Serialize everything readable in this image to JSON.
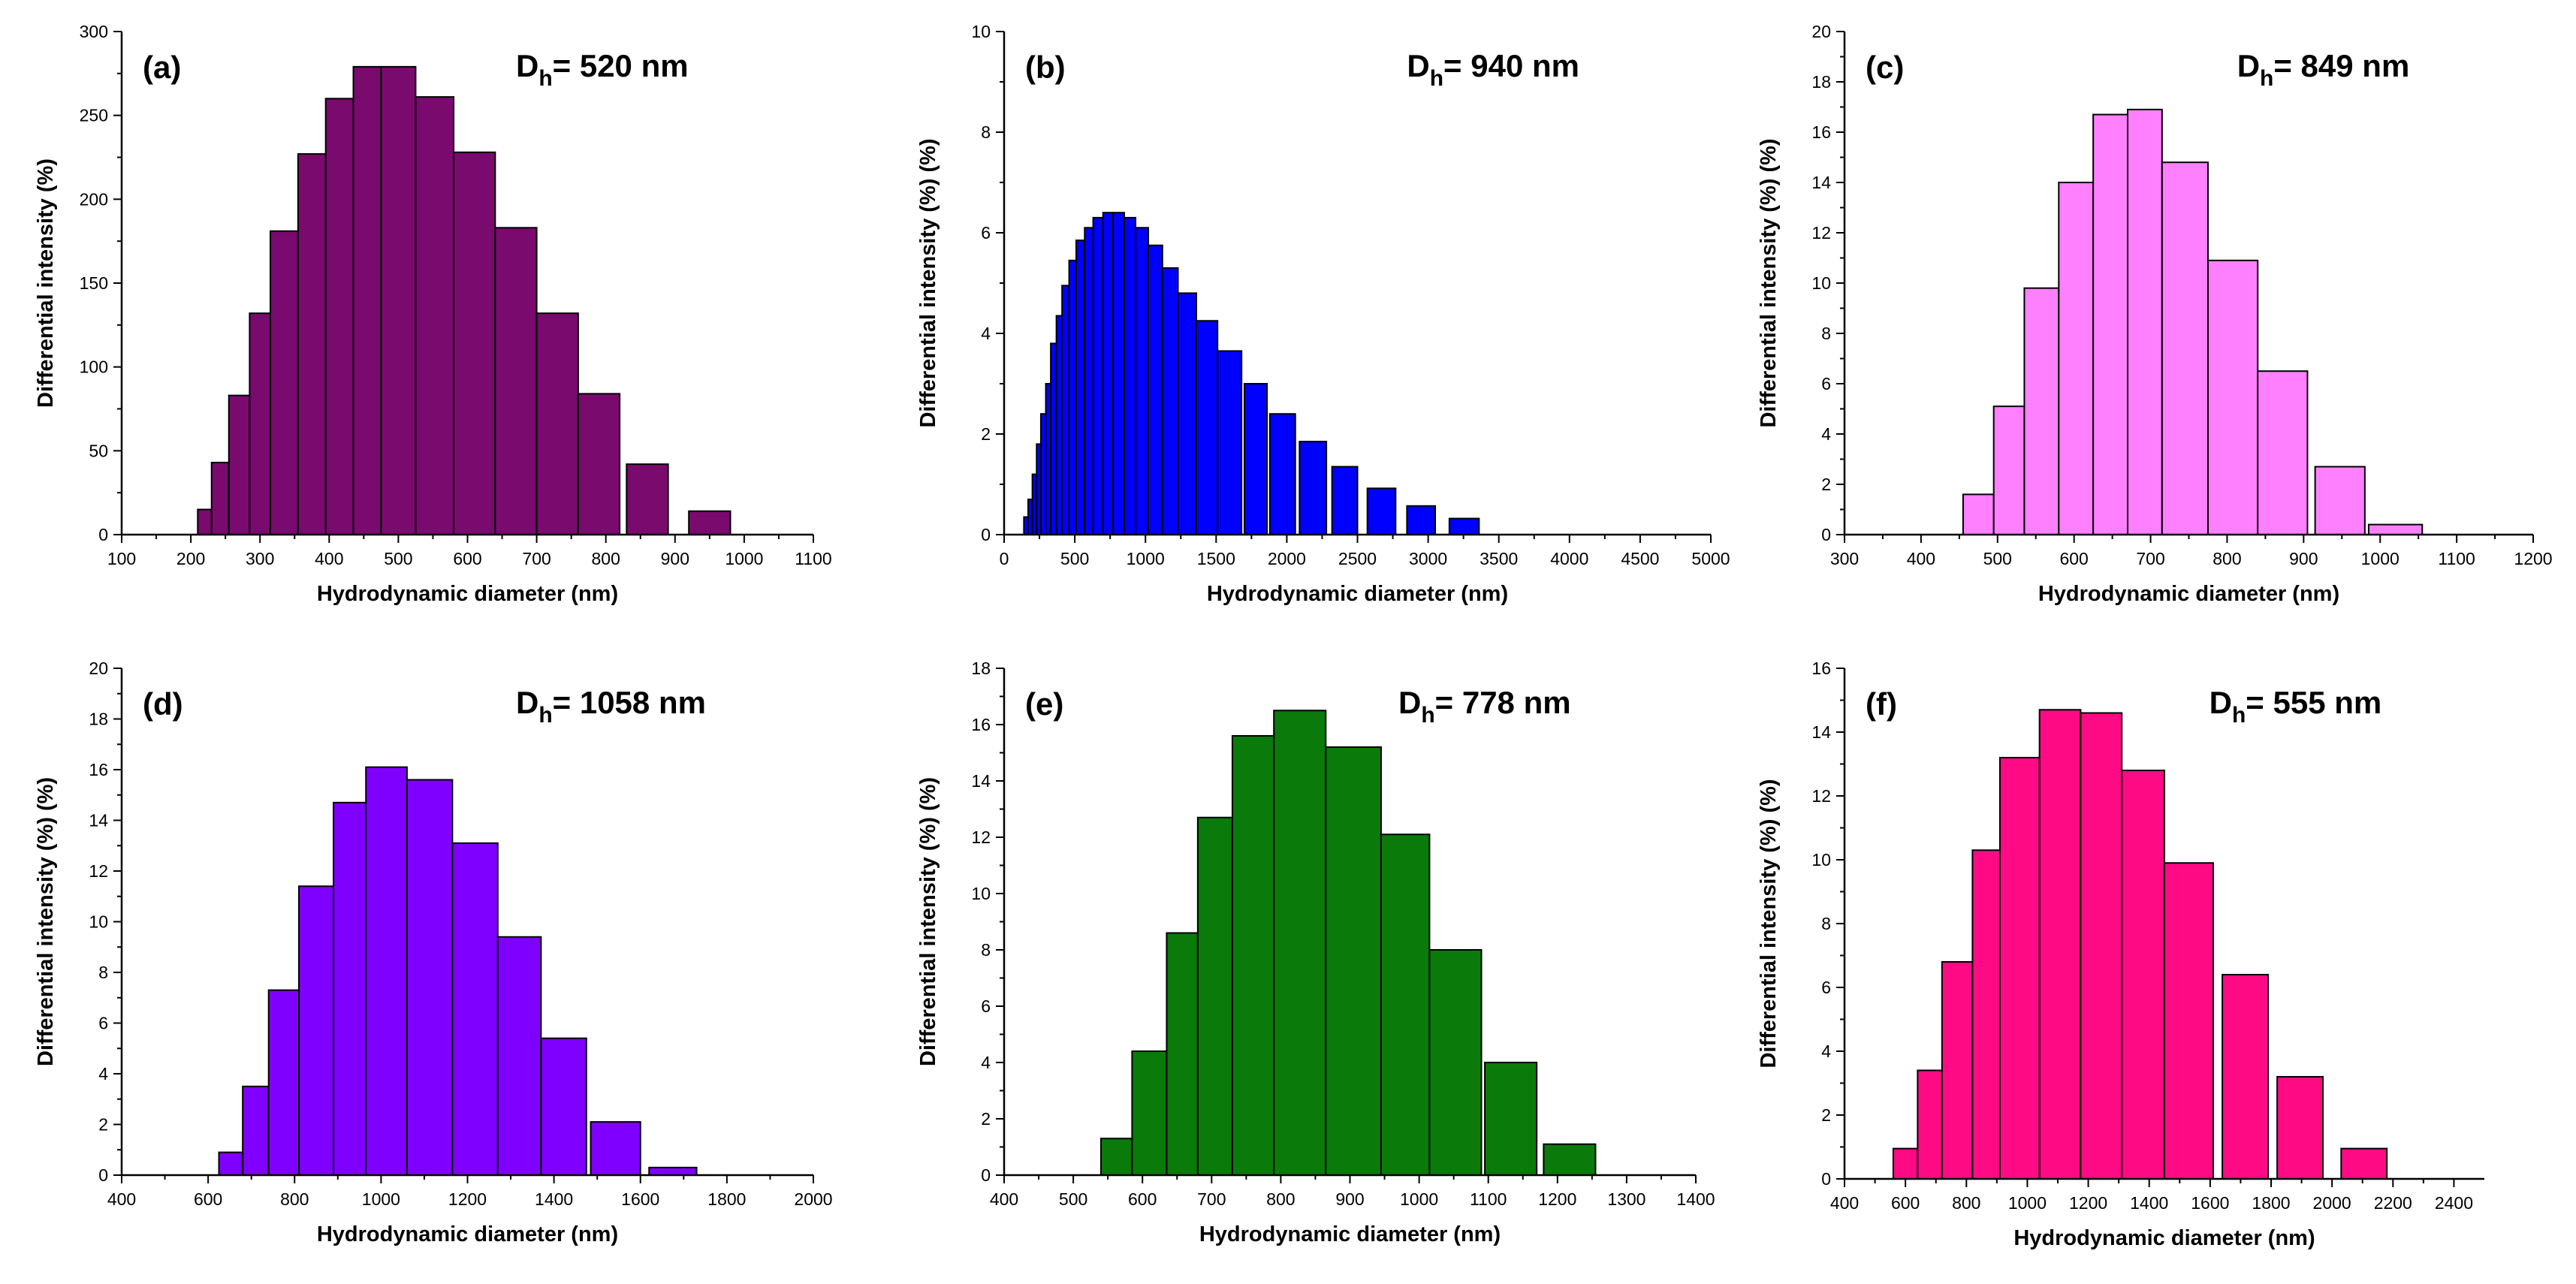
{
  "chart_data": [
    {
      "type": "bar",
      "panel_label": "(a)",
      "annotation": {
        "main": "D",
        "sub": "h",
        "rest": "= 520 nm"
      },
      "xlabel": "Hydrodynamic diameter (nm)",
      "ylabel": "Differential intensity (%)",
      "xlim": [
        100,
        1100
      ],
      "ylim": [
        0,
        300
      ],
      "xticks": [
        100,
        200,
        300,
        400,
        500,
        600,
        700,
        800,
        900,
        1000,
        1100
      ],
      "yticks": [
        0,
        50,
        100,
        150,
        200,
        250,
        300
      ],
      "color": "#7A0A6E",
      "bars": [
        {
          "x0": 210,
          "x1": 230,
          "y": 15
        },
        {
          "x0": 230,
          "x1": 255,
          "y": 43
        },
        {
          "x0": 255,
          "x1": 285,
          "y": 83
        },
        {
          "x0": 285,
          "x1": 315,
          "y": 132
        },
        {
          "x0": 315,
          "x1": 355,
          "y": 181
        },
        {
          "x0": 355,
          "x1": 395,
          "y": 227
        },
        {
          "x0": 395,
          "x1": 435,
          "y": 260
        },
        {
          "x0": 435,
          "x1": 475,
          "y": 279
        },
        {
          "x0": 475,
          "x1": 525,
          "y": 279
        },
        {
          "x0": 525,
          "x1": 580,
          "y": 261
        },
        {
          "x0": 580,
          "x1": 640,
          "y": 228
        },
        {
          "x0": 640,
          "x1": 700,
          "y": 183
        },
        {
          "x0": 700,
          "x1": 760,
          "y": 132
        },
        {
          "x0": 760,
          "x1": 820,
          "y": 84
        },
        {
          "x0": 830,
          "x1": 890,
          "y": 42
        },
        {
          "x0": 920,
          "x1": 980,
          "y": 14
        }
      ]
    },
    {
      "type": "bar",
      "panel_label": "(b)",
      "annotation": {
        "main": "D",
        "sub": "h",
        "rest": "= 940 nm"
      },
      "xlabel": "Hydrodynamic diameter (nm)",
      "ylabel": "Differential intensity (%) (%)",
      "xlim": [
        0,
        5000
      ],
      "ylim": [
        0,
        10
      ],
      "xticks": [
        0,
        500,
        1000,
        1500,
        2000,
        2500,
        3000,
        3500,
        4000,
        4500,
        5000
      ],
      "yticks": [
        0,
        2,
        4,
        6,
        8,
        10
      ],
      "color": "#0000FF",
      "bars": [
        {
          "x0": 140,
          "x1": 170,
          "y": 0.35
        },
        {
          "x0": 170,
          "x1": 200,
          "y": 0.7
        },
        {
          "x0": 200,
          "x1": 230,
          "y": 1.2
        },
        {
          "x0": 230,
          "x1": 260,
          "y": 1.8
        },
        {
          "x0": 260,
          "x1": 295,
          "y": 2.4
        },
        {
          "x0": 295,
          "x1": 330,
          "y": 3.0
        },
        {
          "x0": 330,
          "x1": 370,
          "y": 3.8
        },
        {
          "x0": 370,
          "x1": 410,
          "y": 4.35
        },
        {
          "x0": 410,
          "x1": 460,
          "y": 4.95
        },
        {
          "x0": 460,
          "x1": 510,
          "y": 5.45
        },
        {
          "x0": 510,
          "x1": 570,
          "y": 5.85
        },
        {
          "x0": 570,
          "x1": 630,
          "y": 6.1
        },
        {
          "x0": 630,
          "x1": 700,
          "y": 6.3
        },
        {
          "x0": 700,
          "x1": 770,
          "y": 6.4
        },
        {
          "x0": 770,
          "x1": 850,
          "y": 6.4
        },
        {
          "x0": 850,
          "x1": 930,
          "y": 6.3
        },
        {
          "x0": 930,
          "x1": 1020,
          "y": 6.1
        },
        {
          "x0": 1020,
          "x1": 1120,
          "y": 5.75
        },
        {
          "x0": 1120,
          "x1": 1230,
          "y": 5.3
        },
        {
          "x0": 1230,
          "x1": 1360,
          "y": 4.8
        },
        {
          "x0": 1360,
          "x1": 1510,
          "y": 4.25
        },
        {
          "x0": 1510,
          "x1": 1680,
          "y": 3.65
        },
        {
          "x0": 1700,
          "x1": 1860,
          "y": 3.0
        },
        {
          "x0": 1880,
          "x1": 2060,
          "y": 2.4
        },
        {
          "x0": 2090,
          "x1": 2280,
          "y": 1.85
        },
        {
          "x0": 2320,
          "x1": 2500,
          "y": 1.35
        },
        {
          "x0": 2570,
          "x1": 2770,
          "y": 0.92
        },
        {
          "x0": 2850,
          "x1": 3050,
          "y": 0.57
        },
        {
          "x0": 3150,
          "x1": 3360,
          "y": 0.32
        }
      ]
    },
    {
      "type": "bar",
      "panel_label": "(c)",
      "annotation": {
        "main": "D",
        "sub": "h",
        "rest": "= 849 nm"
      },
      "xlabel": "Hydrodynamic diameter (nm)",
      "ylabel": "Differential intensity (%) (%)",
      "xlim": [
        300,
        1200
      ],
      "ylim": [
        0,
        20
      ],
      "xticks": [
        300,
        400,
        500,
        600,
        700,
        800,
        900,
        1000,
        1100,
        1200
      ],
      "yticks": [
        0,
        2,
        4,
        6,
        8,
        10,
        12,
        14,
        16,
        18,
        20
      ],
      "color": "#FF80FF",
      "bars": [
        {
          "x0": 455,
          "x1": 495,
          "y": 1.6
        },
        {
          "x0": 495,
          "x1": 535,
          "y": 5.1
        },
        {
          "x0": 535,
          "x1": 580,
          "y": 9.8
        },
        {
          "x0": 580,
          "x1": 625,
          "y": 14.0
        },
        {
          "x0": 625,
          "x1": 670,
          "y": 16.7
        },
        {
          "x0": 670,
          "x1": 715,
          "y": 16.9
        },
        {
          "x0": 715,
          "x1": 775,
          "y": 14.8
        },
        {
          "x0": 775,
          "x1": 840,
          "y": 10.9
        },
        {
          "x0": 840,
          "x1": 905,
          "y": 6.5
        },
        {
          "x0": 915,
          "x1": 980,
          "y": 2.7
        },
        {
          "x0": 985,
          "x1": 1055,
          "y": 0.4
        }
      ]
    },
    {
      "type": "bar",
      "panel_label": "(d)",
      "annotation": {
        "main": "D",
        "sub": "h",
        "rest": "= 1058 nm"
      },
      "xlabel": "Hydrodynamic diameter (nm)",
      "ylabel": "Differential intensity (%) (%)",
      "xlim": [
        400,
        2000
      ],
      "ylim": [
        0,
        20
      ],
      "xticks": [
        400,
        600,
        800,
        1000,
        1200,
        1400,
        1600,
        1800,
        2000
      ],
      "yticks": [
        0,
        2,
        4,
        6,
        8,
        10,
        12,
        14,
        16,
        18,
        20
      ],
      "color": "#8000FF",
      "bars": [
        {
          "x0": 625,
          "x1": 680,
          "y": 0.9
        },
        {
          "x0": 680,
          "x1": 740,
          "y": 3.5
        },
        {
          "x0": 740,
          "x1": 810,
          "y": 7.3
        },
        {
          "x0": 810,
          "x1": 890,
          "y": 11.4
        },
        {
          "x0": 890,
          "x1": 965,
          "y": 14.7
        },
        {
          "x0": 965,
          "x1": 1060,
          "y": 16.1
        },
        {
          "x0": 1060,
          "x1": 1165,
          "y": 15.6
        },
        {
          "x0": 1165,
          "x1": 1270,
          "y": 13.1
        },
        {
          "x0": 1270,
          "x1": 1370,
          "y": 9.4
        },
        {
          "x0": 1370,
          "x1": 1475,
          "y": 5.4
        },
        {
          "x0": 1485,
          "x1": 1600,
          "y": 2.1
        },
        {
          "x0": 1620,
          "x1": 1730,
          "y": 0.3
        }
      ]
    },
    {
      "type": "bar",
      "panel_label": "(e)",
      "annotation": {
        "main": "D",
        "sub": "h",
        "rest": "= 778 nm"
      },
      "xlabel": "Hydrodynamic diameter (nm)",
      "ylabel": "Differential intensity (%) (%)",
      "xlim": [
        400,
        1400
      ],
      "ylim": [
        0,
        18
      ],
      "xticks": [
        400,
        500,
        600,
        700,
        800,
        900,
        1000,
        1100,
        1200,
        1300,
        1400
      ],
      "yticks": [
        0,
        2,
        4,
        6,
        8,
        10,
        12,
        14,
        16,
        18
      ],
      "color": "#0A7A0A",
      "bars": [
        {
          "x0": 540,
          "x1": 585,
          "y": 1.3
        },
        {
          "x0": 585,
          "x1": 635,
          "y": 4.4
        },
        {
          "x0": 635,
          "x1": 680,
          "y": 8.6
        },
        {
          "x0": 680,
          "x1": 730,
          "y": 12.7
        },
        {
          "x0": 730,
          "x1": 790,
          "y": 15.6
        },
        {
          "x0": 790,
          "x1": 865,
          "y": 16.5
        },
        {
          "x0": 865,
          "x1": 945,
          "y": 15.2
        },
        {
          "x0": 945,
          "x1": 1015,
          "y": 12.1
        },
        {
          "x0": 1015,
          "x1": 1090,
          "y": 8.0
        },
        {
          "x0": 1095,
          "x1": 1170,
          "y": 4.0
        },
        {
          "x0": 1180,
          "x1": 1255,
          "y": 1.1
        }
      ]
    },
    {
      "type": "bar",
      "panel_label": "(f)",
      "annotation": {
        "main": "D",
        "sub": "h",
        "rest": "= 555 nm"
      },
      "xlabel": "Hydrodynamic diameter (nm)",
      "ylabel": "Differential intensity (%) (%)",
      "xlim": [
        400,
        2500
      ],
      "ylim": [
        0,
        16
      ],
      "xticks": [
        400,
        600,
        800,
        1000,
        1200,
        1400,
        1600,
        1800,
        2000,
        2200,
        2400
      ],
      "yticks": [
        0,
        2,
        4,
        6,
        8,
        10,
        12,
        14,
        16
      ],
      "color": "#FF0A85",
      "bars": [
        {
          "x0": 560,
          "x1": 640,
          "y": 0.95
        },
        {
          "x0": 640,
          "x1": 720,
          "y": 3.4
        },
        {
          "x0": 720,
          "x1": 820,
          "y": 6.8
        },
        {
          "x0": 820,
          "x1": 910,
          "y": 10.3
        },
        {
          "x0": 910,
          "x1": 1040,
          "y": 13.2
        },
        {
          "x0": 1040,
          "x1": 1175,
          "y": 14.7
        },
        {
          "x0": 1175,
          "x1": 1310,
          "y": 14.6
        },
        {
          "x0": 1310,
          "x1": 1450,
          "y": 12.8
        },
        {
          "x0": 1450,
          "x1": 1610,
          "y": 9.9
        },
        {
          "x0": 1640,
          "x1": 1790,
          "y": 6.4
        },
        {
          "x0": 1820,
          "x1": 1970,
          "y": 3.2
        },
        {
          "x0": 2030,
          "x1": 2180,
          "y": 0.95
        }
      ]
    }
  ]
}
